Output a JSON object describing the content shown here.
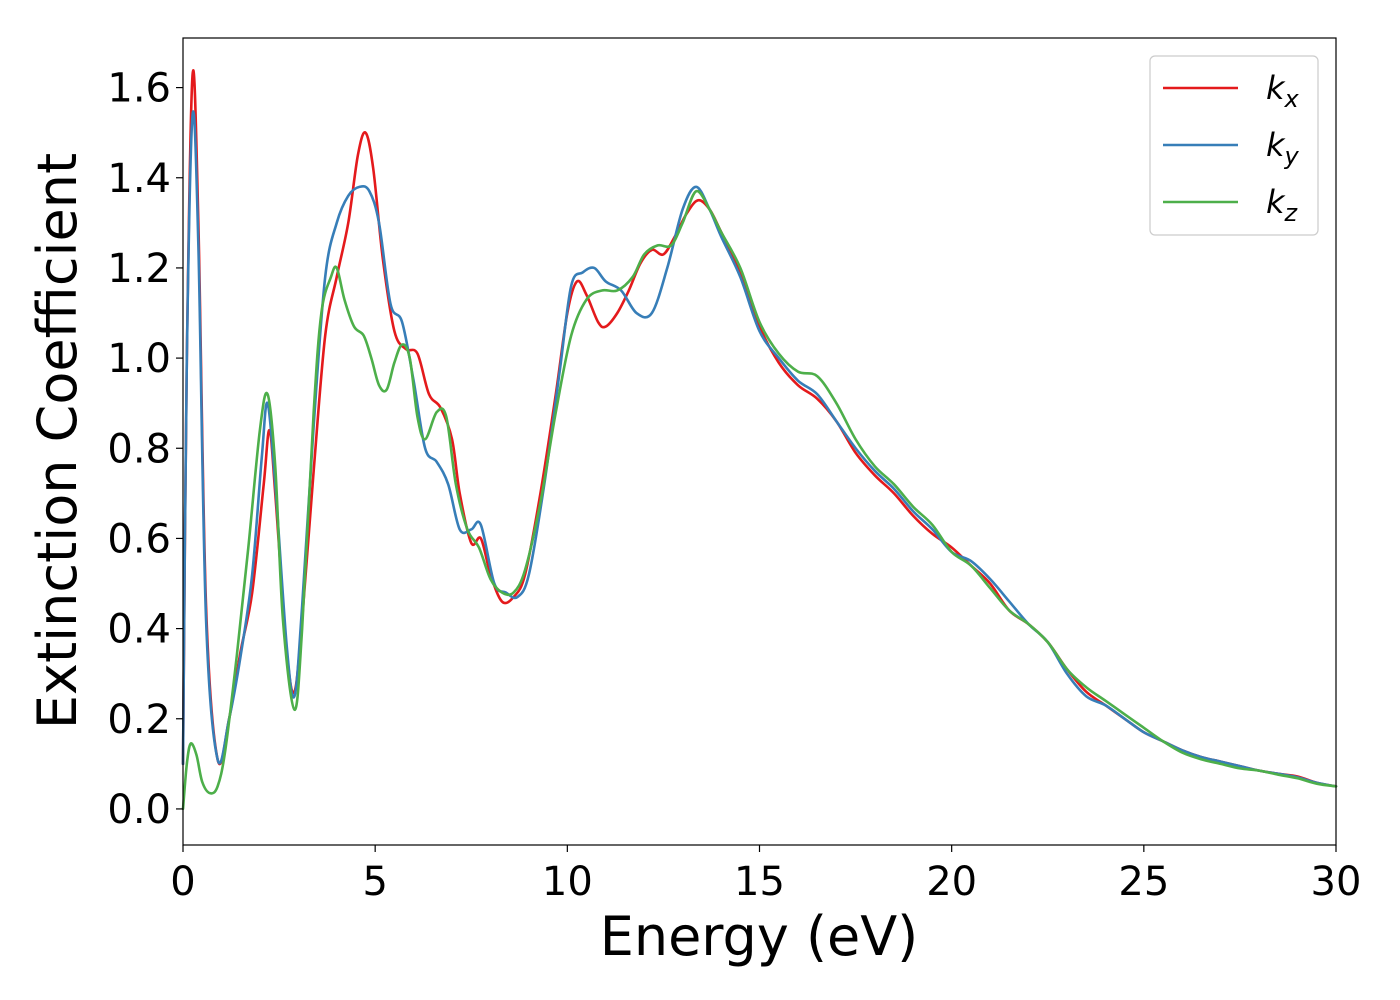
{
  "chart_data": {
    "type": "line",
    "title": "",
    "xlabel": "Energy (eV)",
    "ylabel": "Extinction Coefficient",
    "xlim": [
      0,
      30
    ],
    "ylim": [
      -0.08,
      1.71
    ],
    "xticks": [
      0,
      5,
      10,
      15,
      20,
      25,
      30
    ],
    "xtick_labels": [
      "0",
      "5",
      "10",
      "15",
      "20",
      "25",
      "30"
    ],
    "yticks": [
      0.0,
      0.2,
      0.4,
      0.6,
      0.8,
      1.0,
      1.2,
      1.4,
      1.6
    ],
    "ytick_labels": [
      "0.0",
      "0.2",
      "0.4",
      "0.6",
      "0.8",
      "1.0",
      "1.2",
      "1.4",
      "1.6"
    ],
    "grid": false,
    "legend_position": "top-right",
    "series": [
      {
        "name": "k",
        "subscript": "x",
        "color": "#e41a1c",
        "points": [
          [
            0,
            0.1
          ],
          [
            0.1,
            1.0
          ],
          [
            0.25,
            1.63
          ],
          [
            0.4,
            1.3
          ],
          [
            0.6,
            0.45
          ],
          [
            0.9,
            0.11
          ],
          [
            1.2,
            0.2
          ],
          [
            1.5,
            0.35
          ],
          [
            1.8,
            0.48
          ],
          [
            2.1,
            0.72
          ],
          [
            2.25,
            0.84
          ],
          [
            2.4,
            0.7
          ],
          [
            2.7,
            0.35
          ],
          [
            2.9,
            0.26
          ],
          [
            3.1,
            0.42
          ],
          [
            3.4,
            0.75
          ],
          [
            3.7,
            1.05
          ],
          [
            4.0,
            1.18
          ],
          [
            4.3,
            1.3
          ],
          [
            4.55,
            1.45
          ],
          [
            4.75,
            1.5
          ],
          [
            4.95,
            1.42
          ],
          [
            5.2,
            1.22
          ],
          [
            5.5,
            1.06
          ],
          [
            5.8,
            1.02
          ],
          [
            6.1,
            1.01
          ],
          [
            6.4,
            0.92
          ],
          [
            6.7,
            0.89
          ],
          [
            7.0,
            0.82
          ],
          [
            7.2,
            0.7
          ],
          [
            7.5,
            0.59
          ],
          [
            7.75,
            0.6
          ],
          [
            8.0,
            0.52
          ],
          [
            8.3,
            0.46
          ],
          [
            8.6,
            0.47
          ],
          [
            8.9,
            0.52
          ],
          [
            9.3,
            0.7
          ],
          [
            9.7,
            0.92
          ],
          [
            10.0,
            1.1
          ],
          [
            10.25,
            1.17
          ],
          [
            10.5,
            1.14
          ],
          [
            10.8,
            1.08
          ],
          [
            11.0,
            1.07
          ],
          [
            11.3,
            1.1
          ],
          [
            11.6,
            1.15
          ],
          [
            11.9,
            1.21
          ],
          [
            12.2,
            1.24
          ],
          [
            12.5,
            1.23
          ],
          [
            12.8,
            1.27
          ],
          [
            13.1,
            1.32
          ],
          [
            13.4,
            1.35
          ],
          [
            13.7,
            1.33
          ],
          [
            14.0,
            1.28
          ],
          [
            14.5,
            1.19
          ],
          [
            15.0,
            1.07
          ],
          [
            15.5,
            0.99
          ],
          [
            16.0,
            0.94
          ],
          [
            16.5,
            0.91
          ],
          [
            17.0,
            0.86
          ],
          [
            17.5,
            0.79
          ],
          [
            18.0,
            0.74
          ],
          [
            18.5,
            0.7
          ],
          [
            19.0,
            0.65
          ],
          [
            19.5,
            0.61
          ],
          [
            20.0,
            0.58
          ],
          [
            20.5,
            0.54
          ],
          [
            21.0,
            0.5
          ],
          [
            21.5,
            0.44
          ],
          [
            22.0,
            0.41
          ],
          [
            22.5,
            0.37
          ],
          [
            23.0,
            0.31
          ],
          [
            23.5,
            0.26
          ],
          [
            24.0,
            0.23
          ],
          [
            24.5,
            0.2
          ],
          [
            25.0,
            0.17
          ],
          [
            25.5,
            0.15
          ],
          [
            26.0,
            0.13
          ],
          [
            26.5,
            0.115
          ],
          [
            27.0,
            0.105
          ],
          [
            27.5,
            0.095
          ],
          [
            28.0,
            0.085
          ],
          [
            28.5,
            0.078
          ],
          [
            29.0,
            0.072
          ],
          [
            29.5,
            0.058
          ],
          [
            30.0,
            0.05
          ]
        ]
      },
      {
        "name": "k",
        "subscript": "y",
        "color": "#377eb8",
        "points": [
          [
            0,
            0.1
          ],
          [
            0.1,
            1.0
          ],
          [
            0.25,
            1.54
          ],
          [
            0.4,
            1.25
          ],
          [
            0.6,
            0.42
          ],
          [
            0.9,
            0.11
          ],
          [
            1.2,
            0.2
          ],
          [
            1.5,
            0.34
          ],
          [
            1.8,
            0.52
          ],
          [
            2.05,
            0.78
          ],
          [
            2.2,
            0.9
          ],
          [
            2.4,
            0.72
          ],
          [
            2.7,
            0.36
          ],
          [
            2.9,
            0.25
          ],
          [
            3.1,
            0.45
          ],
          [
            3.4,
            0.85
          ],
          [
            3.7,
            1.18
          ],
          [
            4.0,
            1.3
          ],
          [
            4.3,
            1.36
          ],
          [
            4.6,
            1.38
          ],
          [
            4.85,
            1.37
          ],
          [
            5.1,
            1.3
          ],
          [
            5.4,
            1.12
          ],
          [
            5.7,
            1.08
          ],
          [
            6.0,
            0.95
          ],
          [
            6.3,
            0.8
          ],
          [
            6.6,
            0.77
          ],
          [
            6.9,
            0.72
          ],
          [
            7.2,
            0.62
          ],
          [
            7.5,
            0.62
          ],
          [
            7.75,
            0.63
          ],
          [
            8.1,
            0.5
          ],
          [
            8.4,
            0.48
          ],
          [
            8.7,
            0.47
          ],
          [
            9.0,
            0.52
          ],
          [
            9.4,
            0.72
          ],
          [
            9.8,
            0.97
          ],
          [
            10.1,
            1.16
          ],
          [
            10.4,
            1.19
          ],
          [
            10.7,
            1.2
          ],
          [
            11.0,
            1.17
          ],
          [
            11.4,
            1.15
          ],
          [
            11.8,
            1.1
          ],
          [
            12.2,
            1.1
          ],
          [
            12.6,
            1.2
          ],
          [
            13.0,
            1.33
          ],
          [
            13.35,
            1.38
          ],
          [
            13.7,
            1.33
          ],
          [
            14.0,
            1.27
          ],
          [
            14.5,
            1.18
          ],
          [
            15.0,
            1.06
          ],
          [
            15.5,
            1.0
          ],
          [
            16.0,
            0.95
          ],
          [
            16.5,
            0.92
          ],
          [
            17.0,
            0.86
          ],
          [
            17.5,
            0.8
          ],
          [
            18.0,
            0.75
          ],
          [
            18.5,
            0.71
          ],
          [
            19.0,
            0.66
          ],
          [
            19.5,
            0.62
          ],
          [
            20.0,
            0.57
          ],
          [
            20.5,
            0.55
          ],
          [
            21.0,
            0.51
          ],
          [
            21.5,
            0.46
          ],
          [
            22.0,
            0.41
          ],
          [
            22.5,
            0.37
          ],
          [
            23.0,
            0.3
          ],
          [
            23.5,
            0.25
          ],
          [
            24.0,
            0.23
          ],
          [
            24.5,
            0.2
          ],
          [
            25.0,
            0.17
          ],
          [
            25.5,
            0.15
          ],
          [
            26.0,
            0.13
          ],
          [
            26.5,
            0.115
          ],
          [
            27.0,
            0.105
          ],
          [
            27.5,
            0.095
          ],
          [
            28.0,
            0.085
          ],
          [
            28.5,
            0.078
          ],
          [
            29.0,
            0.07
          ],
          [
            29.5,
            0.058
          ],
          [
            30.0,
            0.05
          ]
        ]
      },
      {
        "name": "k",
        "subscript": "z",
        "color": "#4daf4a",
        "points": [
          [
            0,
            0.0
          ],
          [
            0.1,
            0.1
          ],
          [
            0.2,
            0.145
          ],
          [
            0.35,
            0.12
          ],
          [
            0.5,
            0.06
          ],
          [
            0.7,
            0.035
          ],
          [
            0.9,
            0.05
          ],
          [
            1.1,
            0.13
          ],
          [
            1.4,
            0.34
          ],
          [
            1.7,
            0.58
          ],
          [
            2.0,
            0.84
          ],
          [
            2.2,
            0.92
          ],
          [
            2.4,
            0.76
          ],
          [
            2.6,
            0.42
          ],
          [
            2.9,
            0.22
          ],
          [
            3.1,
            0.4
          ],
          [
            3.4,
            0.88
          ],
          [
            3.6,
            1.1
          ],
          [
            3.85,
            1.18
          ],
          [
            4.0,
            1.2
          ],
          [
            4.2,
            1.13
          ],
          [
            4.45,
            1.07
          ],
          [
            4.7,
            1.05
          ],
          [
            4.9,
            1.0
          ],
          [
            5.1,
            0.94
          ],
          [
            5.3,
            0.93
          ],
          [
            5.5,
            0.99
          ],
          [
            5.7,
            1.03
          ],
          [
            5.9,
            1.0
          ],
          [
            6.1,
            0.87
          ],
          [
            6.3,
            0.82
          ],
          [
            6.6,
            0.88
          ],
          [
            6.85,
            0.87
          ],
          [
            7.1,
            0.72
          ],
          [
            7.4,
            0.62
          ],
          [
            7.7,
            0.58
          ],
          [
            8.0,
            0.51
          ],
          [
            8.3,
            0.48
          ],
          [
            8.6,
            0.48
          ],
          [
            8.9,
            0.53
          ],
          [
            9.3,
            0.68
          ],
          [
            9.7,
            0.88
          ],
          [
            10.1,
            1.05
          ],
          [
            10.5,
            1.13
          ],
          [
            10.9,
            1.15
          ],
          [
            11.3,
            1.15
          ],
          [
            11.7,
            1.18
          ],
          [
            12.0,
            1.23
          ],
          [
            12.35,
            1.25
          ],
          [
            12.7,
            1.25
          ],
          [
            13.0,
            1.3
          ],
          [
            13.35,
            1.37
          ],
          [
            13.7,
            1.33
          ],
          [
            14.0,
            1.28
          ],
          [
            14.5,
            1.2
          ],
          [
            15.0,
            1.08
          ],
          [
            15.5,
            1.01
          ],
          [
            16.0,
            0.97
          ],
          [
            16.5,
            0.96
          ],
          [
            17.0,
            0.9
          ],
          [
            17.5,
            0.82
          ],
          [
            18.0,
            0.76
          ],
          [
            18.5,
            0.72
          ],
          [
            19.0,
            0.67
          ],
          [
            19.5,
            0.63
          ],
          [
            20.0,
            0.57
          ],
          [
            20.5,
            0.54
          ],
          [
            21.0,
            0.49
          ],
          [
            21.5,
            0.44
          ],
          [
            22.0,
            0.41
          ],
          [
            22.5,
            0.37
          ],
          [
            23.0,
            0.31
          ],
          [
            23.5,
            0.27
          ],
          [
            24.0,
            0.24
          ],
          [
            24.5,
            0.21
          ],
          [
            25.0,
            0.18
          ],
          [
            25.5,
            0.15
          ],
          [
            26.0,
            0.125
          ],
          [
            26.5,
            0.11
          ],
          [
            27.0,
            0.1
          ],
          [
            27.5,
            0.09
          ],
          [
            28.0,
            0.085
          ],
          [
            28.5,
            0.076
          ],
          [
            29.0,
            0.068
          ],
          [
            29.5,
            0.056
          ],
          [
            30.0,
            0.05
          ]
        ]
      }
    ]
  }
}
